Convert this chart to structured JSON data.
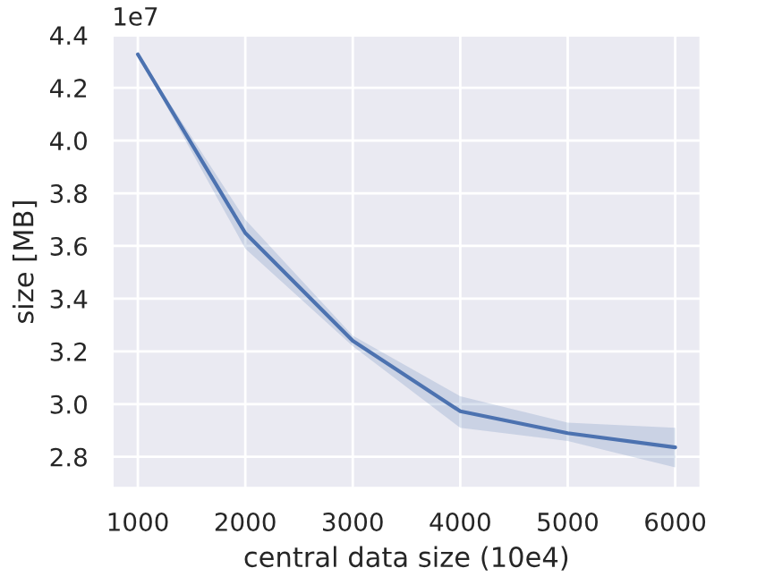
{
  "chart_data": {
    "type": "line",
    "xlabel": "central data size (10e4)",
    "ylabel": "size [MB]",
    "annotations": [
      "1e7"
    ],
    "x": [
      1000,
      2000,
      3000,
      4000,
      5000,
      6000
    ],
    "series": [
      {
        "color": "#4c72b0",
        "values": [
          4.327,
          3.649,
          3.24,
          2.973,
          2.89,
          2.836
        ],
        "lower": [
          4.327,
          3.59,
          3.22,
          2.91,
          2.86,
          2.76
        ],
        "upper": [
          4.327,
          3.7,
          3.26,
          3.03,
          2.93,
          2.91
        ]
      }
    ],
    "xlim": [
      760,
      6240
    ],
    "xticks": [
      1000,
      2000,
      3000,
      4000,
      5000,
      6000
    ],
    "ylim": [
      2.68,
      4.4
    ],
    "yticks": [
      2.8,
      {
        "value": 3,
        "label": "3.0"
      },
      3.2,
      3.4,
      3.6,
      3.8,
      {
        "value": 4,
        "label": "4.0"
      },
      4.2,
      4.4
    ],
    "grid": true,
    "marker": "none",
    "line_style": "solid"
  }
}
